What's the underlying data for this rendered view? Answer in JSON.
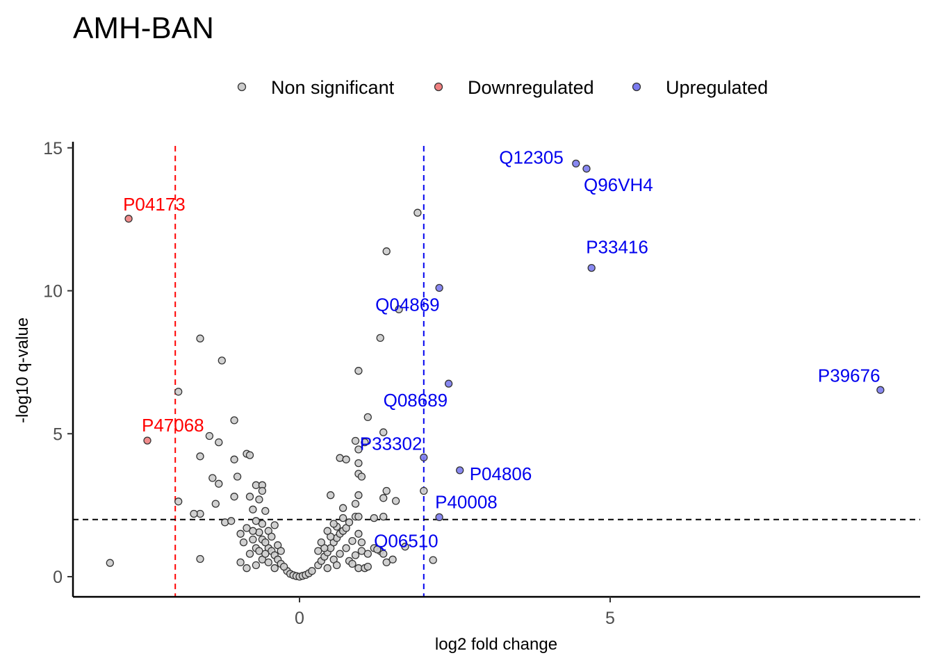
{
  "chart_data": {
    "type": "scatter",
    "title": "AMH-BAN",
    "xlabel": "log2 fold change",
    "ylabel": "-log10 q-value",
    "xlim": [
      -3.65,
      10.0
    ],
    "ylim": [
      -0.7,
      15.2
    ],
    "xticks": [
      "0",
      "5"
    ],
    "yticks": [
      "0",
      "5",
      "10",
      "15"
    ],
    "grid": false,
    "legend_position": "top",
    "legend": [
      {
        "name": "Non significant",
        "color": "#cccccc"
      },
      {
        "name": "Downregulated",
        "color": "#f08080"
      },
      {
        "name": "Upregulated",
        "color": "#7b7bf0"
      }
    ],
    "thresholds": {
      "vertical_down": -2,
      "vertical_up": 2,
      "horizontal": 2,
      "down_color": "#ff0000",
      "up_color": "#0000ee",
      "h_color": "#000000"
    },
    "series": [
      {
        "name": "Non significant",
        "points": [
          [
            -3.05,
            0.48
          ],
          [
            -1.6,
            8.33
          ],
          [
            -1.25,
            7.56
          ],
          [
            -1.95,
            6.47
          ],
          [
            -1.05,
            5.47
          ],
          [
            -1.45,
            4.92
          ],
          [
            -1.3,
            4.7
          ],
          [
            -1.6,
            4.21
          ],
          [
            -0.85,
            4.3
          ],
          [
            -0.8,
            4.25
          ],
          [
            -1.05,
            4.1
          ],
          [
            -1.4,
            3.45
          ],
          [
            -1.3,
            3.25
          ],
          [
            -1.0,
            3.5
          ],
          [
            -0.7,
            3.2
          ],
          [
            -0.6,
            3.2
          ],
          [
            -0.6,
            3.0
          ],
          [
            -1.05,
            2.8
          ],
          [
            -0.8,
            2.8
          ],
          [
            -0.65,
            2.7
          ],
          [
            -1.35,
            2.55
          ],
          [
            -1.95,
            2.63
          ],
          [
            -1.6,
            2.2
          ],
          [
            -1.7,
            2.2
          ],
          [
            -1.2,
            1.9
          ],
          [
            -1.1,
            1.95
          ],
          [
            -0.75,
            2.35
          ],
          [
            -0.55,
            2.3
          ],
          [
            -1.6,
            0.62
          ],
          [
            -0.95,
            0.5
          ],
          [
            -0.2,
            0.2
          ],
          [
            -0.15,
            0.1
          ],
          [
            -0.1,
            0.05
          ],
          [
            -0.05,
            0.02
          ],
          [
            0.0,
            0.0
          ],
          [
            0.05,
            0.03
          ],
          [
            0.1,
            0.06
          ],
          [
            0.15,
            0.12
          ],
          [
            0.2,
            0.2
          ],
          [
            -0.5,
            1.0
          ],
          [
            -0.45,
            0.9
          ],
          [
            -0.4,
            0.75
          ],
          [
            -0.35,
            0.6
          ],
          [
            -0.3,
            0.45
          ],
          [
            -0.25,
            0.35
          ],
          [
            -0.6,
            1.3
          ],
          [
            -0.55,
            1.2
          ],
          [
            -0.65,
            1.55
          ],
          [
            -0.7,
            1.0
          ],
          [
            -0.8,
            0.8
          ],
          [
            -0.9,
            1.2
          ],
          [
            -0.75,
            1.6
          ],
          [
            -0.5,
            1.6
          ],
          [
            -0.45,
            1.4
          ],
          [
            -0.35,
            1.1
          ],
          [
            -0.3,
            0.9
          ],
          [
            -0.6,
            0.6
          ],
          [
            -0.7,
            0.4
          ],
          [
            -0.85,
            0.3
          ],
          [
            -0.4,
            0.3
          ],
          [
            -0.5,
            0.5
          ],
          [
            -0.55,
            0.8
          ],
          [
            -0.65,
            0.9
          ],
          [
            -0.75,
            1.3
          ],
          [
            -0.85,
            1.7
          ],
          [
            -0.95,
            1.5
          ],
          [
            -0.4,
            1.8
          ],
          [
            -0.6,
            1.85
          ],
          [
            -0.7,
            1.95
          ],
          [
            0.3,
            0.4
          ],
          [
            0.35,
            0.55
          ],
          [
            0.4,
            0.7
          ],
          [
            0.45,
            0.85
          ],
          [
            0.5,
            1.0
          ],
          [
            0.55,
            1.2
          ],
          [
            0.6,
            1.35
          ],
          [
            0.65,
            1.5
          ],
          [
            0.7,
            1.6
          ],
          [
            0.75,
            1.7
          ],
          [
            0.4,
            1.0
          ],
          [
            0.5,
            1.4
          ],
          [
            0.6,
            1.75
          ],
          [
            0.7,
            2.05
          ],
          [
            0.55,
            0.6
          ],
          [
            0.65,
            0.8
          ],
          [
            0.75,
            1.0
          ],
          [
            0.85,
            1.25
          ],
          [
            0.95,
            1.5
          ],
          [
            0.45,
            0.3
          ],
          [
            0.6,
            0.4
          ],
          [
            0.8,
            0.55
          ],
          [
            0.9,
            0.75
          ],
          [
            1.0,
            0.9
          ],
          [
            0.35,
            1.2
          ],
          [
            0.45,
            1.6
          ],
          [
            0.55,
            1.85
          ],
          [
            0.3,
            0.9
          ],
          [
            0.8,
            1.9
          ],
          [
            0.9,
            2.1
          ],
          [
            1.0,
            1.2
          ],
          [
            1.1,
            0.8
          ],
          [
            1.2,
            1.0
          ],
          [
            1.3,
            0.9
          ],
          [
            1.4,
            0.5
          ],
          [
            0.95,
            0.3
          ],
          [
            1.05,
            0.3
          ],
          [
            0.85,
            0.45
          ],
          [
            1.9,
            12.73
          ],
          [
            1.4,
            11.38
          ],
          [
            1.6,
            9.35
          ],
          [
            1.3,
            8.35
          ],
          [
            0.95,
            7.2
          ],
          [
            1.1,
            5.58
          ],
          [
            1.35,
            5.05
          ],
          [
            0.9,
            4.75
          ],
          [
            1.05,
            4.7
          ],
          [
            0.95,
            4.45
          ],
          [
            0.65,
            4.15
          ],
          [
            0.75,
            4.1
          ],
          [
            0.95,
            3.97
          ],
          [
            0.95,
            3.6
          ],
          [
            1.0,
            3.5
          ],
          [
            1.4,
            3.0
          ],
          [
            1.35,
            2.75
          ],
          [
            1.55,
            2.65
          ],
          [
            0.5,
            2.85
          ],
          [
            0.95,
            2.85
          ],
          [
            0.9,
            2.55
          ],
          [
            0.7,
            2.4
          ],
          [
            0.95,
            2.1
          ],
          [
            1.35,
            2.1
          ],
          [
            1.2,
            2.05
          ],
          [
            2.0,
            3.0
          ],
          [
            1.7,
            1.05
          ],
          [
            1.25,
            0.95
          ],
          [
            1.5,
            0.6
          ],
          [
            2.15,
            0.58
          ],
          [
            1.1,
            0.35
          ],
          [
            1.35,
            0.8
          ]
        ]
      },
      {
        "name": "Downregulated",
        "points": [
          [
            -2.75,
            12.52
          ],
          [
            -2.45,
            4.76
          ]
        ]
      },
      {
        "name": "Upregulated",
        "points": [
          [
            4.45,
            14.45
          ],
          [
            4.62,
            14.27
          ],
          [
            4.7,
            10.8
          ],
          [
            2.25,
            10.1
          ],
          [
            2.4,
            6.75
          ],
          [
            2.0,
            4.17
          ],
          [
            2.58,
            3.72
          ],
          [
            2.25,
            2.08
          ],
          [
            9.35,
            6.53
          ]
        ]
      }
    ],
    "labels": [
      {
        "text": "Q12305",
        "x": 4.45,
        "y": 14.45,
        "color": "#0000ee"
      },
      {
        "text": "Q96VH4",
        "x": 4.62,
        "y": 14.27,
        "color": "#0000ee"
      },
      {
        "text": "P33416",
        "x": 4.7,
        "y": 10.8,
        "color": "#0000ee"
      },
      {
        "text": "Q04869",
        "x": 2.25,
        "y": 10.1,
        "color": "#0000ee"
      },
      {
        "text": "P39676",
        "x": 9.35,
        "y": 6.53,
        "color": "#0000ee"
      },
      {
        "text": "Q08689",
        "x": 2.4,
        "y": 6.75,
        "color": "#0000ee"
      },
      {
        "text": "P33302",
        "x": 2.0,
        "y": 4.17,
        "color": "#0000ee"
      },
      {
        "text": "P04806",
        "x": 2.58,
        "y": 3.72,
        "color": "#0000ee"
      },
      {
        "text": "P40008",
        "x": 2.25,
        "y": 2.08,
        "color": "#0000ee"
      },
      {
        "text": "Q06510",
        "x": 2.25,
        "y": 2.08,
        "color": "#0000ee"
      },
      {
        "text": "P04173",
        "x": -2.75,
        "y": 12.52,
        "color": "#ff0000"
      },
      {
        "text": "P47068",
        "x": -2.45,
        "y": 4.76,
        "color": "#ff0000"
      }
    ]
  }
}
